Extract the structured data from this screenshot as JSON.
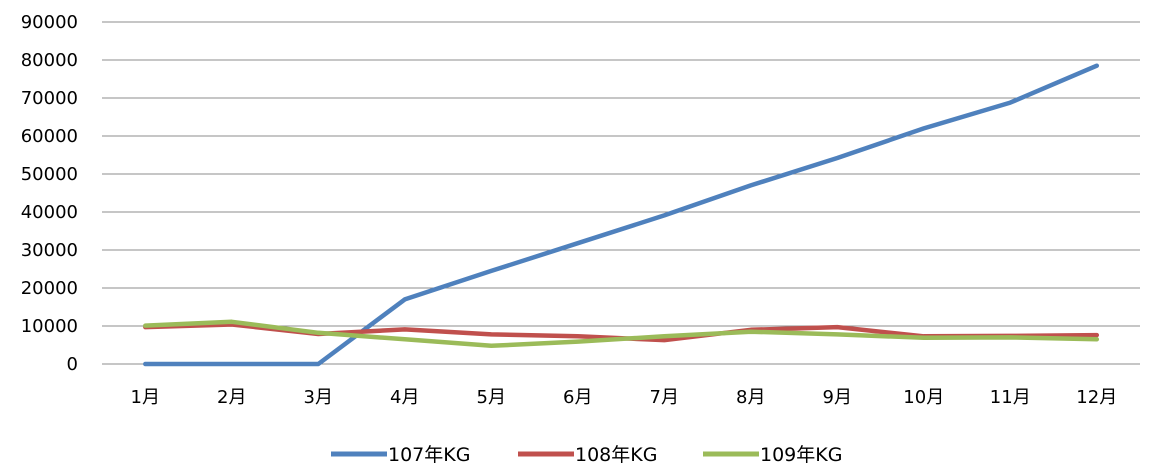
{
  "chart_data": {
    "type": "line",
    "title": "",
    "xlabel": "",
    "ylabel": "",
    "categories": [
      "1月",
      "2月",
      "3月",
      "4月",
      "5月",
      "6月",
      "7月",
      "8月",
      "9月",
      "10月",
      "11月",
      "12月"
    ],
    "ylim": [
      0,
      90000
    ],
    "yticks": [
      "0",
      "10000",
      "20000",
      "30000",
      "40000",
      "50000",
      "60000",
      "70000",
      "80000",
      "90000"
    ],
    "grid": true,
    "legend_position": "bottom",
    "series": [
      {
        "name": "107年KG",
        "color": "#4f81bd",
        "values": [
          0,
          0,
          0,
          17000,
          24500,
          31800,
          39100,
          47000,
          54200,
          62000,
          68800,
          78500
        ]
      },
      {
        "name": "108年KG",
        "color": "#c0504d",
        "values": [
          9700,
          10400,
          7900,
          9100,
          7800,
          7300,
          6300,
          9000,
          9700,
          7300,
          7400,
          7600
        ]
      },
      {
        "name": "109年KG",
        "color": "#9bbb59",
        "values": [
          10100,
          11100,
          8200,
          6500,
          4800,
          5900,
          7300,
          8500,
          7800,
          6900,
          7000,
          6500
        ]
      }
    ]
  }
}
